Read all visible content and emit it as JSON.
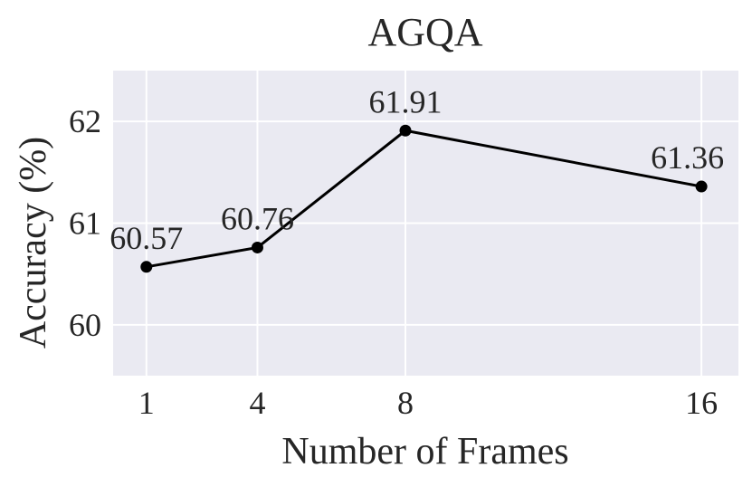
{
  "chart_data": {
    "type": "line",
    "title": "AGQA",
    "xlabel": "Number of Frames",
    "ylabel": "Accuracy (%)",
    "x": [
      1,
      4,
      8,
      16
    ],
    "x_ticks": [
      "1",
      "4",
      "8",
      "16"
    ],
    "series": [
      {
        "values": [
          60.57,
          60.76,
          61.91,
          61.36
        ],
        "labels": [
          "60.57",
          "60.76",
          "61.91",
          "61.36"
        ]
      }
    ],
    "y_ticks": [
      "60",
      "61",
      "62"
    ],
    "ylim": [
      59.5,
      62.5
    ],
    "grid": true,
    "style": "seaborn-darkgrid",
    "colors": {
      "line": "#000000",
      "background": "#eaeaf2",
      "grid": "#ffffff"
    }
  }
}
